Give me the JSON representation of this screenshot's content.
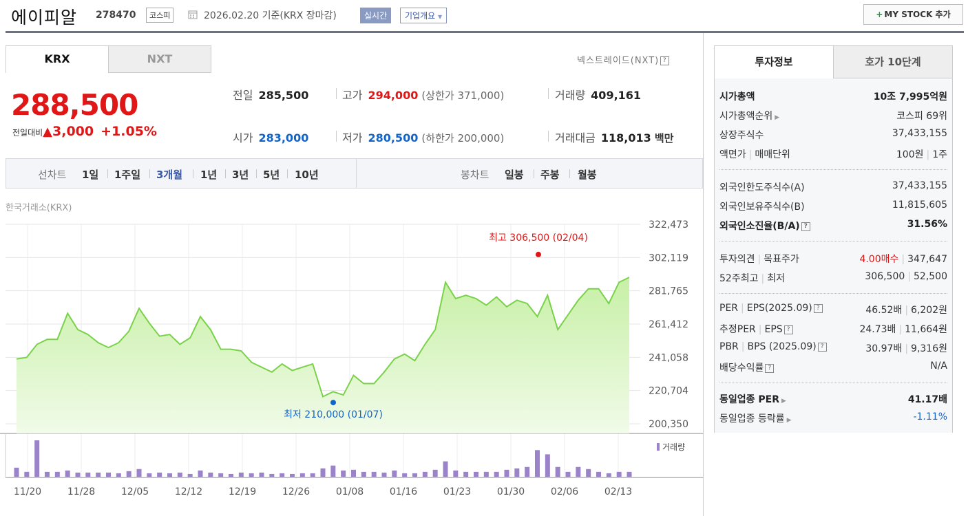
{
  "header": {
    "name": "에이피알",
    "code": "278470",
    "market": "코스피",
    "date": "2026.02.20 기준(KRX 장마감)",
    "realtime": "실시간",
    "overview": "기업개요",
    "mystock_plus": "+",
    "mystock": "MY STOCK 추가"
  },
  "tabs": {
    "krx": "KRX",
    "nxt": "NXT",
    "nxt_link": "넥스트레이드(NXT)",
    "help": "?"
  },
  "price": {
    "current": "288,500",
    "change_label": "전일대비",
    "change_icon": "up-triangle-icon",
    "change_tri": "▲",
    "change": "3,000",
    "change_pct": "+1.05%"
  },
  "quote": {
    "prev_k": "전일",
    "prev_v": "285,500",
    "high_k": "고가",
    "high_v": "294,000",
    "upper_limit": "(상한가 371,000)",
    "vol_k": "거래량",
    "vol_v": "409,161",
    "open_k": "시가",
    "open_v": "283,000",
    "low_k": "저가",
    "low_v": "280,500",
    "lower_limit": "(하한가 200,000)",
    "amt_k": "거래대금",
    "amt_v": "118,013",
    "amt_unit": "백만"
  },
  "periods": {
    "line_label": "선차트",
    "line": [
      "1일",
      "1주일",
      "3개월",
      "1년",
      "3년",
      "5년",
      "10년"
    ],
    "selected": "3개월",
    "candle_label": "봉차트",
    "candle": [
      "일봉",
      "주봉",
      "월봉"
    ]
  },
  "exchange": "한국거래소(KRX)",
  "colors": {
    "up": "#e01717",
    "down": "#1464c8",
    "line": "#7ad14a",
    "volume": "#9a83c9"
  },
  "chart_data": {
    "type": "area",
    "yticks": [
      "322,473",
      "302,119",
      "281,765",
      "261,412",
      "241,058",
      "220,704",
      "200,350"
    ],
    "ylim": [
      200350,
      322473
    ],
    "xticks": [
      "11/20",
      "11/28",
      "12/05",
      "12/12",
      "12/19",
      "12/26",
      "01/08",
      "01/16",
      "01/23",
      "01/30",
      "02/06",
      "02/13"
    ],
    "high_label": "최고 306,500 (02/04)",
    "low_label": "최저 210,000 (01/07)",
    "volume_label": "거래량",
    "values": [
      240000,
      241000,
      249000,
      252000,
      252000,
      268000,
      258000,
      255000,
      250000,
      247000,
      250000,
      257000,
      271000,
      262000,
      254000,
      255000,
      249000,
      253000,
      266000,
      258000,
      246000,
      246000,
      245000,
      238000,
      235000,
      232000,
      237000,
      233000,
      235000,
      237000,
      217000,
      220000,
      218000,
      230000,
      225000,
      225000,
      232000,
      240000,
      243000,
      239000,
      249000,
      258000,
      287000,
      277000,
      279000,
      277000,
      273000,
      278000,
      272000,
      276000,
      274000,
      266000,
      279000,
      258000,
      267000,
      276000,
      283000,
      283000,
      274000,
      287000,
      290000
    ],
    "volume": [
      13,
      7,
      52,
      7,
      7,
      9,
      6,
      6,
      6,
      6,
      5,
      8,
      11,
      5,
      6,
      5,
      6,
      4,
      9,
      6,
      5,
      4,
      6,
      5,
      6,
      4,
      5,
      4,
      5,
      5,
      12,
      16,
      9,
      10,
      7,
      7,
      6,
      9,
      5,
      5,
      7,
      10,
      22,
      9,
      7,
      7,
      7,
      7,
      10,
      12,
      14,
      38,
      32,
      14,
      7,
      14,
      11,
      7,
      5,
      7,
      7
    ],
    "high_marker": 306500,
    "low_marker": 210000
  },
  "invest": {
    "tab_on": "투자정보",
    "tab_off": "호가 10단계",
    "rows": [
      {
        "k": "시가총액",
        "v": "10조 7,995억원",
        "bold": true
      },
      {
        "k": "시가총액순위",
        "arrow": true,
        "v": "코스피 69위"
      },
      {
        "k": "상장주식수",
        "v": "37,433,155"
      },
      {
        "k": "액면가",
        "k2": "매매단위",
        "v": "100원",
        "v2": "1주"
      },
      {
        "k": "외국인한도주식수(A)",
        "v": "37,433,155"
      },
      {
        "k": "외국인보유주식수(B)",
        "v": "11,815,605"
      },
      {
        "k": "외국인소진율(B/A)",
        "help": true,
        "v": "31.56%",
        "bold": true
      },
      {
        "k": "투자의견",
        "k2": "목표주가",
        "v": "4.00매수",
        "v2": "347,647",
        "vred": true
      },
      {
        "k": "52주최고",
        "k2": "최저",
        "v": "306,500",
        "v2": "52,500"
      },
      {
        "k": "PER",
        "k2": "EPS(2025.09)",
        "help": true,
        "v": "46.52배",
        "v2": "6,202원"
      },
      {
        "k": "추정PER",
        "k2": "EPS",
        "help": true,
        "v": "24.73배",
        "v2": "11,664원"
      },
      {
        "k": "PBR",
        "k2": "BPS (2025.09)",
        "help": true,
        "v": "30.97배",
        "v2": "9,316원"
      },
      {
        "k": "배당수익률",
        "help": true,
        "v": "N/A"
      },
      {
        "k": "동일업종 PER",
        "arrow": true,
        "v": "41.17배",
        "bold": true
      },
      {
        "k": "동일업종 등락률",
        "arrow": true,
        "v": "-1.11%",
        "vblue": true
      }
    ]
  }
}
